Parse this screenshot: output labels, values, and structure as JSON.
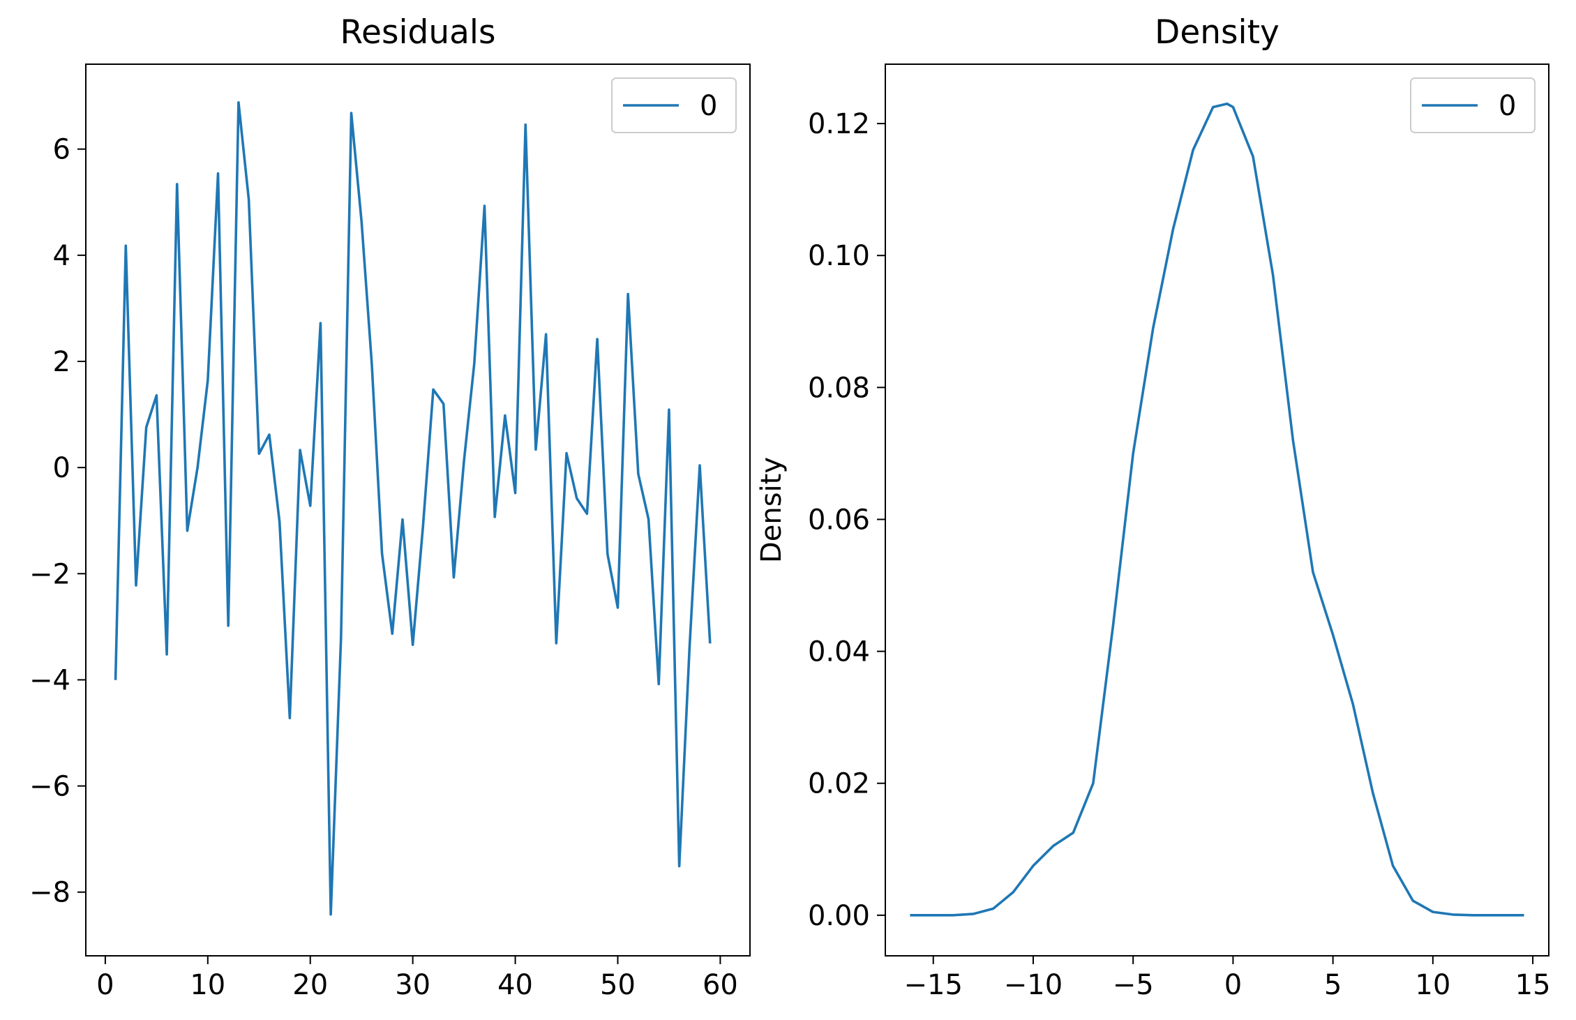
{
  "figure": {
    "background": "#ffffff",
    "series_color": "#1f77b4"
  },
  "chart_data": [
    {
      "type": "line",
      "title": "Residuals",
      "xlabel": "",
      "ylabel": "",
      "xlim": [
        -1.9,
        62.9
      ],
      "ylim": [
        -9.2,
        7.6
      ],
      "xticks": [
        0,
        10,
        20,
        30,
        40,
        50,
        60
      ],
      "xtick_labels": [
        "0",
        "10",
        "20",
        "30",
        "40",
        "50",
        "60"
      ],
      "yticks": [
        -8,
        -6,
        -4,
        -2,
        0,
        2,
        4,
        6
      ],
      "ytick_labels": [
        "−8",
        "−6",
        "−4",
        "−2",
        "0",
        "2",
        "4",
        "6"
      ],
      "grid": false,
      "legend": {
        "placement": "top-right",
        "entries": [
          "0"
        ]
      },
      "series": [
        {
          "name": "0",
          "color": "#1f77b4",
          "x": [
            1,
            2,
            3,
            4,
            5,
            6,
            7,
            8,
            9,
            10,
            11,
            12,
            13,
            14,
            15,
            16,
            17,
            18,
            19,
            20,
            21,
            22,
            23,
            24,
            25,
            26,
            27,
            28,
            29,
            30,
            31,
            32,
            33,
            34,
            35,
            36,
            37,
            38,
            39,
            40,
            41,
            42,
            43,
            44,
            45,
            46,
            47,
            48,
            49,
            50,
            51,
            52,
            53,
            54,
            55,
            56,
            57,
            58,
            59
          ],
          "values": [
            -3.98,
            4.18,
            -2.22,
            0.76,
            1.36,
            -3.52,
            5.34,
            -1.19,
            0.0,
            1.64,
            5.54,
            -2.98,
            6.88,
            5.05,
            0.26,
            0.62,
            -1.02,
            -4.72,
            0.33,
            -0.72,
            2.72,
            -8.42,
            -3.2,
            6.68,
            4.64,
            1.96,
            -1.62,
            -3.13,
            -0.98,
            -3.34,
            -1.1,
            1.47,
            1.2,
            -2.07,
            0.13,
            1.96,
            4.93,
            -0.93,
            0.98,
            -0.48,
            6.46,
            0.34,
            2.51,
            -3.31,
            0.27,
            -0.58,
            -0.87,
            2.42,
            -1.63,
            -2.64,
            3.27,
            -0.12,
            -0.97,
            -4.08,
            1.09,
            -7.51,
            -3.4,
            0.04,
            -3.29
          ]
        }
      ]
    },
    {
      "type": "line",
      "title": "Density",
      "xlabel": "",
      "ylabel": "Density",
      "xlim": [
        -17.4,
        15.8
      ],
      "ylim": [
        -0.00615,
        0.129
      ],
      "xticks": [
        -15,
        -10,
        -5,
        0,
        5,
        10,
        15
      ],
      "xtick_labels": [
        "−15",
        "−10",
        "−5",
        "0",
        "5",
        "10",
        "15"
      ],
      "yticks": [
        0.0,
        0.02,
        0.04,
        0.06,
        0.08,
        0.1,
        0.12
      ],
      "ytick_labels": [
        "0.00",
        "0.02",
        "0.04",
        "0.06",
        "0.08",
        "0.10",
        "0.12"
      ],
      "grid": false,
      "legend": {
        "placement": "top-right",
        "entries": [
          "0"
        ]
      },
      "series": [
        {
          "name": "0",
          "color": "#1f77b4",
          "x": [
            -16.1,
            -14,
            -13,
            -12,
            -11,
            -10,
            -9,
            -8,
            -7,
            -6,
            -5,
            -4,
            -3,
            -2,
            -1,
            -0.3,
            0,
            1,
            2,
            3,
            4,
            5,
            6,
            7,
            8,
            9,
            10,
            11,
            12,
            14.5
          ],
          "values": [
            0.0,
            0.0,
            0.0002,
            0.001,
            0.0035,
            0.0075,
            0.0105,
            0.0125,
            0.02,
            0.044,
            0.07,
            0.089,
            0.104,
            0.116,
            0.1225,
            0.123,
            0.1225,
            0.115,
            0.097,
            0.072,
            0.052,
            0.0425,
            0.032,
            0.0185,
            0.0075,
            0.0022,
            0.0005,
            0.0001,
            0.0,
            0.0
          ]
        }
      ]
    }
  ]
}
